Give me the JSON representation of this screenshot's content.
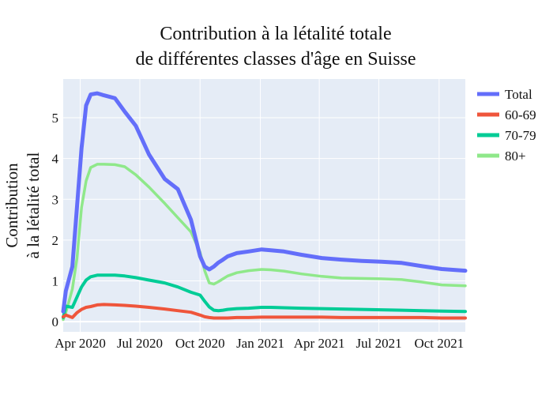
{
  "chart_data": {
    "type": "line",
    "title_lines": [
      "Contribution à la létalité totale",
      "de différentes classes d'âge en Suisse"
    ],
    "ylabel_lines": [
      "Contribution",
      "à la létalité total"
    ],
    "xlabel": "",
    "x_ticks": [
      {
        "date": "2020-04-01",
        "label": "Apr 2020"
      },
      {
        "date": "2020-07-01",
        "label": "Jul 2020"
      },
      {
        "date": "2020-10-01",
        "label": "Oct 2020"
      },
      {
        "date": "2021-01-01",
        "label": "Jan 2021"
      },
      {
        "date": "2021-04-01",
        "label": "Apr 2021"
      },
      {
        "date": "2021-07-01",
        "label": "Jul 2021"
      },
      {
        "date": "2021-10-01",
        "label": "Oct 2021"
      }
    ],
    "xlim": [
      "2020-03-06",
      "2021-11-10"
    ],
    "y_ticks": [
      0,
      1,
      2,
      3,
      4,
      5
    ],
    "ylim": [
      -0.25,
      5.95
    ],
    "grid": true,
    "legend_position": "top-right",
    "x": [
      "2020-03-06",
      "2020-03-10",
      "2020-03-20",
      "2020-03-27",
      "2020-04-03",
      "2020-04-10",
      "2020-04-17",
      "2020-04-27",
      "2020-05-07",
      "2020-05-24",
      "2020-06-08",
      "2020-06-25",
      "2020-07-15",
      "2020-08-08",
      "2020-08-28",
      "2020-09-17",
      "2020-10-01",
      "2020-10-08",
      "2020-10-15",
      "2020-10-22",
      "2020-10-29",
      "2020-11-05",
      "2020-11-12",
      "2020-11-26",
      "2020-12-14",
      "2021-01-03",
      "2021-01-17",
      "2021-02-06",
      "2021-03-05",
      "2021-04-05",
      "2021-05-05",
      "2021-06-05",
      "2021-07-05",
      "2021-08-05",
      "2021-09-05",
      "2021-10-05",
      "2021-11-10"
    ],
    "series": [
      {
        "name": "Total",
        "color": "#636efa",
        "width": 5,
        "values": [
          0.25,
          0.75,
          1.35,
          2.8,
          4.25,
          5.3,
          5.57,
          5.6,
          5.55,
          5.48,
          5.15,
          4.8,
          4.1,
          3.5,
          3.25,
          2.5,
          1.6,
          1.35,
          1.28,
          1.35,
          1.45,
          1.52,
          1.6,
          1.68,
          1.72,
          1.77,
          1.75,
          1.72,
          1.64,
          1.56,
          1.52,
          1.49,
          1.47,
          1.44,
          1.36,
          1.29,
          1.25
        ]
      },
      {
        "name": "60-69",
        "color": "#ef553b",
        "width": 4,
        "values": [
          0.12,
          0.16,
          0.1,
          0.22,
          0.3,
          0.35,
          0.37,
          0.41,
          0.42,
          0.41,
          0.4,
          0.38,
          0.35,
          0.31,
          0.27,
          0.23,
          0.16,
          0.12,
          0.1,
          0.09,
          0.09,
          0.09,
          0.09,
          0.1,
          0.1,
          0.11,
          0.11,
          0.11,
          0.11,
          0.11,
          0.1,
          0.1,
          0.1,
          0.1,
          0.1,
          0.09,
          0.09
        ]
      },
      {
        "name": "70-79",
        "color": "#00cc96",
        "width": 4,
        "values": [
          0.1,
          0.38,
          0.35,
          0.6,
          0.85,
          1.02,
          1.1,
          1.14,
          1.14,
          1.14,
          1.12,
          1.08,
          1.02,
          0.95,
          0.85,
          0.72,
          0.65,
          0.5,
          0.36,
          0.28,
          0.27,
          0.28,
          0.3,
          0.32,
          0.33,
          0.35,
          0.35,
          0.34,
          0.33,
          0.32,
          0.31,
          0.3,
          0.29,
          0.28,
          0.27,
          0.26,
          0.25
        ]
      },
      {
        "name": "80+",
        "color": "#8fe88a",
        "width": 3.5,
        "values": [
          0.05,
          0.22,
          0.8,
          1.55,
          2.8,
          3.45,
          3.78,
          3.86,
          3.86,
          3.85,
          3.8,
          3.6,
          3.3,
          2.9,
          2.55,
          2.2,
          1.7,
          1.25,
          0.95,
          0.92,
          0.98,
          1.05,
          1.12,
          1.2,
          1.25,
          1.28,
          1.27,
          1.24,
          1.17,
          1.11,
          1.07,
          1.06,
          1.05,
          1.03,
          0.97,
          0.9,
          0.88
        ]
      }
    ]
  }
}
